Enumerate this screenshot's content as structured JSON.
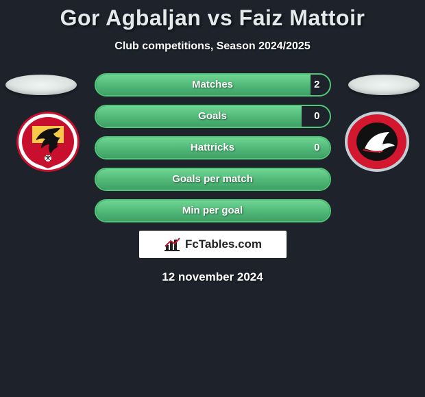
{
  "title": "Gor Agbaljan vs Faiz Mattoir",
  "subtitle": "Club competitions, Season 2024/2025",
  "footer_date": "12 november 2024",
  "brand": {
    "label": "FcTables.com"
  },
  "colors": {
    "background": "#1d222b",
    "bar_border": "#50c878",
    "bar_fill_top": "#6fd494",
    "bar_fill_mid": "#4fb877",
    "bar_fill_bot": "#3fa066",
    "title_color": "#e4e9e9",
    "text_color": "#ffffff",
    "brand_bg": "#ffffff",
    "brand_text": "#222222",
    "ellipse_fill": "#eef5f3"
  },
  "crests": {
    "left": {
      "name": "go-ahead-eagles",
      "shield_yellow": "#f7c948",
      "shield_red": "#c8102e",
      "ring_outer": "#c8102e",
      "ring_inner": "#ffffff",
      "eagle": "#111111"
    },
    "right": {
      "name": "almere-city",
      "ring_outer": "#c2cfd6",
      "ring_red": "#d3172f",
      "center": "#111111",
      "bird": "#ffffff"
    }
  },
  "stats": [
    {
      "label": "Matches",
      "value": "2",
      "fill_pct": 92
    },
    {
      "label": "Goals",
      "value": "0",
      "fill_pct": 88
    },
    {
      "label": "Hattricks",
      "value": "0",
      "fill_pct": 100
    },
    {
      "label": "Goals per match",
      "value": "",
      "fill_pct": 100
    },
    {
      "label": "Min per goal",
      "value": "",
      "fill_pct": 100
    }
  ]
}
